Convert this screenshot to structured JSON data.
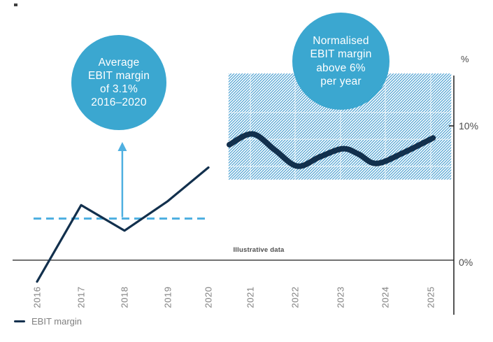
{
  "colors": {
    "navy": "#12304d",
    "sky": "#3ba7d0",
    "sky_bright": "#4fb0e1",
    "hatch": "#4aa0d1",
    "axis": "#1f1f1f",
    "text_dark_gray": "#4c4c4c",
    "text_muted_gray": "#818181",
    "band_gridline": "rgba(255,255,255,0.65)"
  },
  "annotations": {
    "left_bubble": {
      "lines": [
        "Average",
        "EBIT margin",
        "of 3.1%",
        "2016–2020"
      ]
    },
    "right_bubble": {
      "lines": [
        "Normalised",
        "EBIT margin",
        "above 6%",
        "per year"
      ]
    }
  },
  "footnote": "Illustrative data",
  "legend": {
    "label": "EBIT margin"
  },
  "chart_data": {
    "type": "line",
    "title": "",
    "unit": "%",
    "x_ticks": [
      "2016",
      "2017",
      "2018",
      "2019",
      "2020",
      "2021",
      "2022",
      "2023",
      "2024",
      "2025"
    ],
    "y_ticks": [
      {
        "value": 10,
        "label": "10%"
      },
      {
        "value": 0,
        "label": "0%"
      }
    ],
    "ylim": [
      -3.5,
      14
    ],
    "grid": "off",
    "legend_position": "bottom-left",
    "series": [
      {
        "name": "EBIT margin",
        "x": [
          2016,
          2017,
          2018,
          2019,
          2020
        ],
        "values": [
          -1.6,
          4.1,
          2.2,
          4.4,
          6.9
        ]
      }
    ],
    "illustrative_projection": {
      "name": "Normalised EBIT margin (illustrative wave)",
      "points": [
        [
          2020.5,
          8.6
        ],
        [
          2021.05,
          9.4
        ],
        [
          2021.55,
          8.2
        ],
        [
          2022.05,
          7.0
        ],
        [
          2022.55,
          7.7
        ],
        [
          2023.05,
          8.3
        ],
        [
          2023.4,
          7.9
        ],
        [
          2023.8,
          7.2
        ],
        [
          2024.4,
          8.0
        ],
        [
          2025.05,
          9.1
        ]
      ]
    },
    "average_line": {
      "value": 3.1,
      "x_span": [
        2015.92,
        2020.02
      ],
      "style": "dashed"
    },
    "band": {
      "label": "Normalised EBIT margin above 6% per year",
      "y_from": 6,
      "y_to": 13.9,
      "x_from": 2020.48,
      "x_to": 2025.45,
      "pattern": "diagonal-hatch",
      "band_grid_y": [
        7,
        9,
        11
      ],
      "band_grid_x": [
        2021,
        2022,
        2023,
        2024,
        2025
      ]
    },
    "arrow_annotation": {
      "x": 2017.95,
      "from_value": 3.2,
      "to_value": 8.8
    }
  }
}
